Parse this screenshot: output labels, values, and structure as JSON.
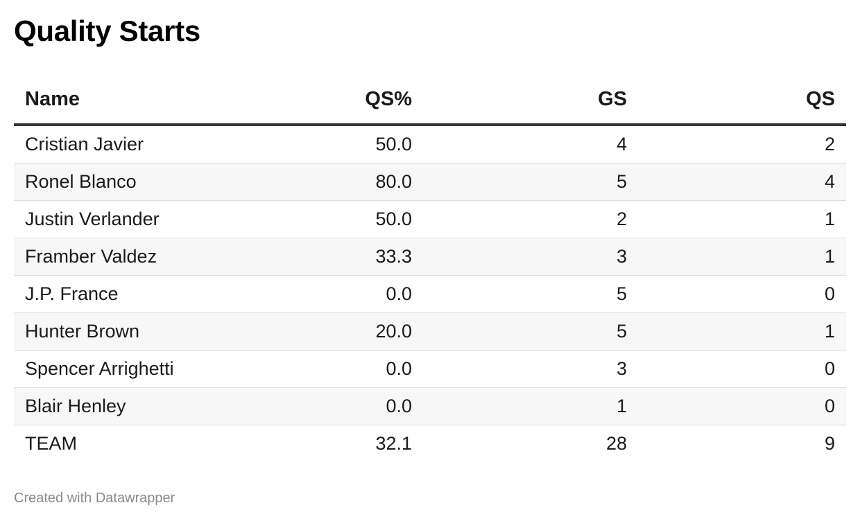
{
  "title": "Quality Starts",
  "footer": "Created with Datawrapper",
  "chart_data": {
    "type": "table",
    "title": "Quality Starts",
    "columns": [
      "Name",
      "QS%",
      "GS",
      "QS"
    ],
    "rows": [
      [
        "Cristian Javier",
        "50.0",
        "4",
        "2"
      ],
      [
        "Ronel Blanco",
        "80.0",
        "5",
        "4"
      ],
      [
        "Justin Verlander",
        "50.0",
        "2",
        "1"
      ],
      [
        "Framber Valdez",
        "33.3",
        "3",
        "1"
      ],
      [
        "J.P. France",
        "0.0",
        "5",
        "0"
      ],
      [
        "Hunter Brown",
        "20.0",
        "5",
        "1"
      ],
      [
        "Spencer Arrighetti",
        "0.0",
        "3",
        "0"
      ],
      [
        "Blair Henley",
        "0.0",
        "1",
        "0"
      ],
      [
        "TEAM",
        "32.1",
        "28",
        "9"
      ]
    ]
  }
}
